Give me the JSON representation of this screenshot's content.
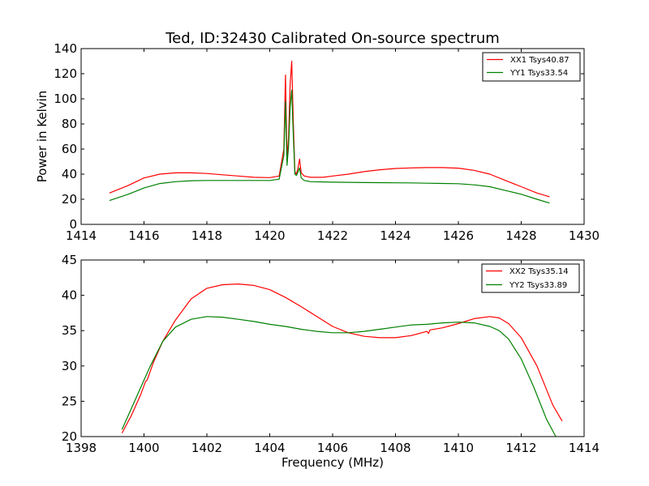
{
  "chart_data": [
    {
      "type": "line",
      "title": "Ted, ID:32430 Calibrated On-source spectrum",
      "xlabel": "",
      "ylabel": "Power in Kelvin",
      "xlim": [
        1414,
        1430
      ],
      "ylim": [
        0,
        140
      ],
      "xticks": [
        "1414",
        "1416",
        "1418",
        "1420",
        "1422",
        "1424",
        "1426",
        "1428",
        "1430"
      ],
      "yticks": [
        "0",
        "20",
        "40",
        "60",
        "80",
        "100",
        "120",
        "140"
      ],
      "grid": false,
      "legend_position": "top-right",
      "series": [
        {
          "name": "XX1 Tsys40.87",
          "color": "#ff0000",
          "x": [
            1414.9,
            1415.5,
            1416.0,
            1416.5,
            1417.0,
            1417.5,
            1418.0,
            1418.5,
            1419.0,
            1419.5,
            1420.0,
            1420.3,
            1420.45,
            1420.5,
            1420.55,
            1420.6,
            1420.65,
            1420.7,
            1420.75,
            1420.8,
            1420.85,
            1420.9,
            1420.95,
            1421.0,
            1421.1,
            1421.3,
            1421.7,
            1422.0,
            1422.5,
            1423.0,
            1423.5,
            1424.0,
            1424.5,
            1425.0,
            1425.5,
            1426.0,
            1426.5,
            1427.0,
            1427.5,
            1428.0,
            1428.5,
            1428.9
          ],
          "y": [
            25,
            31,
            37,
            40,
            41,
            41,
            40.5,
            39.5,
            38.5,
            37.5,
            37.2,
            38.5,
            60,
            119,
            52,
            70,
            112,
            130,
            80,
            42,
            40,
            45,
            52,
            41,
            38.5,
            37.5,
            37.5,
            38.5,
            40,
            42,
            43.5,
            44.5,
            45,
            45.2,
            45.2,
            44.8,
            43,
            40,
            35,
            30,
            25,
            22
          ]
        },
        {
          "name": "YY1 Tsys33.54",
          "color": "#008000",
          "x": [
            1414.9,
            1415.5,
            1416.0,
            1416.5,
            1417.0,
            1417.5,
            1418.0,
            1418.5,
            1419.0,
            1419.5,
            1420.0,
            1420.3,
            1420.45,
            1420.5,
            1420.55,
            1420.6,
            1420.65,
            1420.7,
            1420.75,
            1420.8,
            1420.85,
            1420.9,
            1420.95,
            1421.0,
            1421.1,
            1421.3,
            1421.7,
            1422.0,
            1422.5,
            1423.0,
            1423.5,
            1424.0,
            1424.5,
            1425.0,
            1425.5,
            1426.0,
            1426.5,
            1427.0,
            1427.5,
            1428.0,
            1428.5,
            1428.9
          ],
          "y": [
            19,
            24,
            29,
            32.5,
            34,
            34.8,
            35,
            35,
            35,
            35,
            35,
            36,
            55,
            98,
            47,
            62,
            94,
            107,
            70,
            40,
            39,
            42,
            45,
            37,
            35,
            34,
            33.8,
            33.6,
            33.5,
            33.3,
            33.2,
            33.1,
            33.0,
            32.8,
            32.6,
            32.4,
            31.5,
            30,
            27,
            24,
            20,
            17
          ]
        }
      ]
    },
    {
      "type": "line",
      "title": "",
      "xlabel": "Frequency (MHz)",
      "ylabel": "",
      "xlim": [
        1398,
        1414
      ],
      "ylim": [
        20,
        45
      ],
      "xticks": [
        "1398",
        "1400",
        "1402",
        "1404",
        "1406",
        "1408",
        "1410",
        "1412",
        "1414"
      ],
      "yticks": [
        "20",
        "25",
        "30",
        "35",
        "40",
        "45"
      ],
      "grid": false,
      "legend_position": "top-right",
      "series": [
        {
          "name": "XX2 Tsys35.14",
          "color": "#ff0000",
          "x": [
            1399.3,
            1399.6,
            1399.9,
            1400.0,
            1400.05,
            1400.1,
            1400.3,
            1400.6,
            1401.0,
            1401.5,
            1402.0,
            1402.5,
            1403.0,
            1403.5,
            1404.0,
            1404.5,
            1405.0,
            1405.5,
            1406.0,
            1406.5,
            1407.0,
            1407.5,
            1408.0,
            1408.5,
            1409.0,
            1409.05,
            1409.1,
            1409.5,
            1410.0,
            1410.5,
            1411.0,
            1411.3,
            1411.6,
            1412.0,
            1412.5,
            1413.0,
            1413.3
          ],
          "y": [
            20.5,
            23,
            26,
            27.2,
            27.8,
            28,
            30.5,
            33.5,
            36.5,
            39.5,
            41.0,
            41.5,
            41.6,
            41.4,
            40.8,
            39.7,
            38.4,
            37.0,
            35.6,
            34.7,
            34.2,
            34.0,
            34.0,
            34.3,
            34.9,
            34.6,
            35.1,
            35.4,
            36.0,
            36.7,
            37.0,
            36.8,
            36.0,
            34.0,
            30.0,
            24.5,
            22.2
          ]
        },
        {
          "name": "YY2 Tsys33.89",
          "color": "#008000",
          "x": [
            1399.3,
            1399.6,
            1399.9,
            1400.2,
            1400.6,
            1401.0,
            1401.5,
            1402.0,
            1402.5,
            1403.0,
            1403.5,
            1404.0,
            1404.5,
            1405.0,
            1405.5,
            1406.0,
            1406.5,
            1407.0,
            1407.5,
            1408.0,
            1408.5,
            1409.0,
            1409.5,
            1410.0,
            1410.5,
            1411.0,
            1411.3,
            1411.6,
            1412.0,
            1412.4,
            1412.8,
            1413.1
          ],
          "y": [
            21,
            24,
            27,
            30,
            33.5,
            35.5,
            36.6,
            37.0,
            36.9,
            36.6,
            36.3,
            35.9,
            35.6,
            35.2,
            34.9,
            34.7,
            34.7,
            34.9,
            35.2,
            35.5,
            35.8,
            35.9,
            36.1,
            36.2,
            36.1,
            35.6,
            35.0,
            33.8,
            31.0,
            27.0,
            22.5,
            20
          ]
        }
      ]
    }
  ]
}
